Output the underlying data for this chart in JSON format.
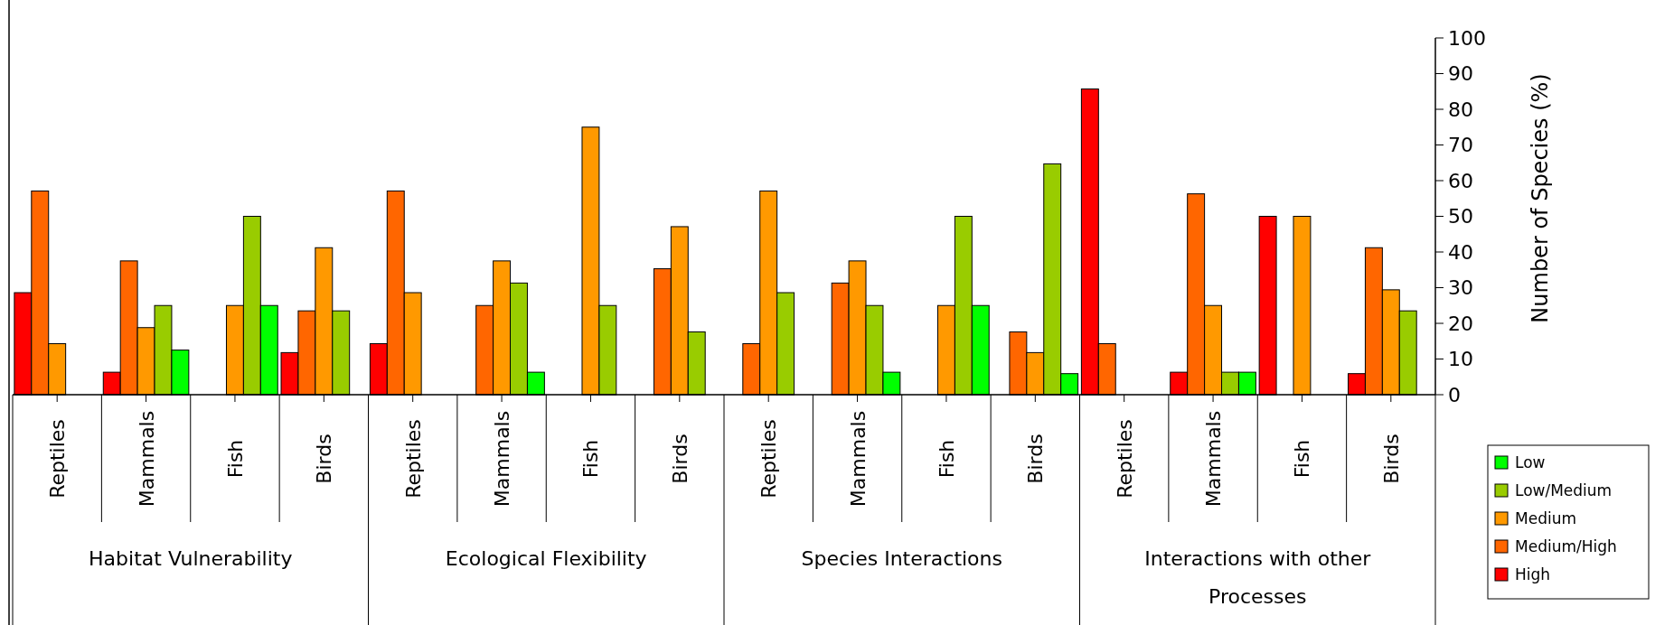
{
  "chart_data": {
    "type": "bar",
    "ylabel": "Number of Species (%)",
    "categories": [
      "Reptiles",
      "Mammals",
      "Fish",
      "Birds",
      "Reptiles",
      "Mammals",
      "Fish",
      "Birds",
      "Reptiles",
      "Mammals",
      "Fish",
      "Birds",
      "Reptiles",
      "Mammals",
      "Fish",
      "Birds"
    ],
    "series": [
      {
        "name": "High",
        "color": "#ff0000",
        "values": [
          28.6,
          6.3,
          0,
          11.8,
          14.3,
          0,
          0,
          0,
          0,
          0,
          0,
          0,
          85.7,
          6.3,
          50,
          5.9
        ]
      },
      {
        "name": "Medium/High",
        "color": "#ff6600",
        "values": [
          57.1,
          37.5,
          0,
          23.5,
          57.1,
          25,
          0,
          35.3,
          14.3,
          31.3,
          0,
          17.6,
          14.3,
          56.3,
          0,
          41.2
        ]
      },
      {
        "name": "Medium",
        "color": "#ff9900",
        "values": [
          14.3,
          18.8,
          25,
          41.2,
          28.6,
          37.5,
          75,
          47.1,
          57.1,
          37.5,
          25,
          11.8,
          0,
          25,
          50,
          29.4
        ]
      },
      {
        "name": "Low/Medium",
        "color": "#99cc00",
        "values": [
          0,
          25,
          50,
          23.5,
          0,
          31.3,
          25,
          17.6,
          28.6,
          25,
          50,
          64.7,
          0,
          6.3,
          0,
          23.5
        ]
      },
      {
        "name": "Low",
        "color": "#00ff00",
        "values": [
          0,
          12.5,
          25,
          0,
          0,
          6.3,
          0,
          0,
          0,
          6.3,
          25,
          5.9,
          0,
          6.3,
          0,
          0
        ]
      }
    ],
    "annotations": [
      "Habitat Vulnerability",
      "Ecological Flexibility",
      "Species Interactions",
      "Interactions with other Processes"
    ],
    "ylim": [
      0,
      100
    ],
    "yticks": [
      0,
      10,
      20,
      30,
      40,
      50,
      60,
      70,
      80,
      90,
      100
    ],
    "grid": false,
    "legend": "bottom right"
  }
}
